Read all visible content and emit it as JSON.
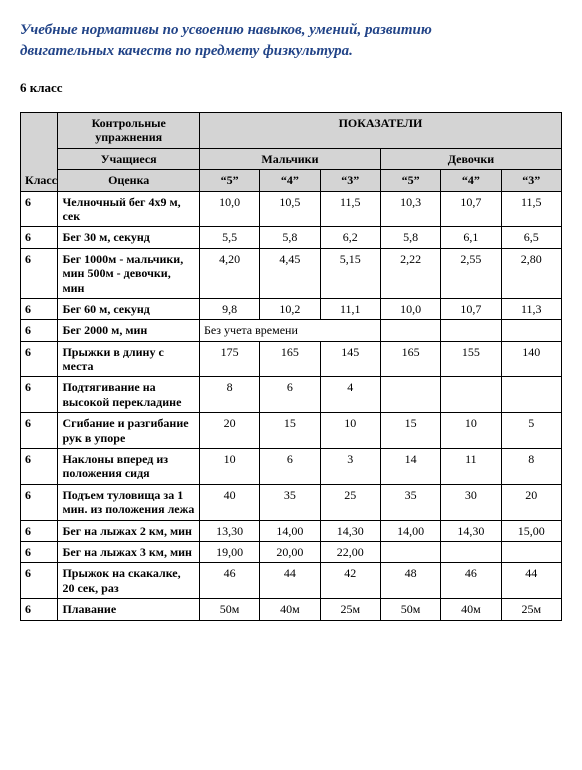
{
  "title_line1": "Учебные нормативы по усвоению навыков, умений, развитию",
  "title_line2": "двигательных качеств по предмету физкультура.",
  "grade_label": "6 класс",
  "headers": {
    "klass": "Класс",
    "exercises": "Контрольные упражнения",
    "indicators": "ПОКАЗАТЕЛИ",
    "students": "Учащиеся",
    "boys": "Мальчики",
    "girls": "Девочки",
    "grade": "Оценка",
    "g5": "“5”",
    "g4": "“4”",
    "g3": "“3”"
  },
  "rows": [
    {
      "k": "6",
      "ex": "Челночный бег 4x9 м, сек",
      "v": [
        "10,0",
        "10,5",
        "11,5",
        "10,3",
        "10,7",
        "11,5"
      ]
    },
    {
      "k": "6",
      "ex": "Бег 30 м, секунд",
      "v": [
        "5,5",
        "5,8",
        "6,2",
        "5,8",
        "6,1",
        "6,5"
      ]
    },
    {
      "k": "6",
      "ex": "Бег 1000м - мальчики, мин 500м - девочки, мин",
      "v": [
        "4,20",
        "4,45",
        "5,15",
        "2,22",
        "2,55",
        "2,80"
      ]
    },
    {
      "k": "6",
      "ex": "Бег 60 м, секунд",
      "v": [
        "9,8",
        "10,2",
        "11,1",
        "10,0",
        "10,7",
        "11,3"
      ]
    },
    {
      "k": "6",
      "ex": "Бег 2000 м, мин",
      "merged_boys": "Без учета времени",
      "v_girls": [
        "",
        "",
        ""
      ]
    },
    {
      "k": "6",
      "ex": "Прыжки в длину с места",
      "v": [
        "175",
        "165",
        "145",
        "165",
        "155",
        "140"
      ]
    },
    {
      "k": "6",
      "ex": "Подтягивание на высокой перекладине",
      "v": [
        "8",
        "6",
        "4",
        "",
        "",
        ""
      ]
    },
    {
      "k": "6",
      "ex": "Сгибание и разгибание рук в упоре",
      "v": [
        "20",
        "15",
        "10",
        "15",
        "10",
        "5"
      ]
    },
    {
      "k": "6",
      "ex": "Наклоны вперед из положения сидя",
      "v": [
        "10",
        "6",
        "3",
        "14",
        "11",
        "8"
      ]
    },
    {
      "k": "6",
      "ex": "Подъем туловища за 1 мин. из положения лежа",
      "v": [
        "40",
        "35",
        "25",
        "35",
        "30",
        "20"
      ]
    },
    {
      "k": "6",
      "ex": "Бег на лыжах 2 км, мин",
      "v": [
        "13,30",
        "14,00",
        "14,30",
        "14,00",
        "14,30",
        "15,00"
      ]
    },
    {
      "k": "6",
      "ex": "Бег на лыжах 3 км, мин",
      "v": [
        "19,00",
        "20,00",
        "22,00",
        "",
        "",
        ""
      ]
    },
    {
      "k": "6",
      "ex": "Прыжок на скакалке, 20 сек, раз",
      "v": [
        "46",
        "44",
        "42",
        "48",
        "46",
        "44"
      ]
    },
    {
      "k": "6",
      "ex": "Плавание",
      "v": [
        "50м",
        "40м",
        "25м",
        "50м",
        "40м",
        "25м"
      ]
    }
  ]
}
